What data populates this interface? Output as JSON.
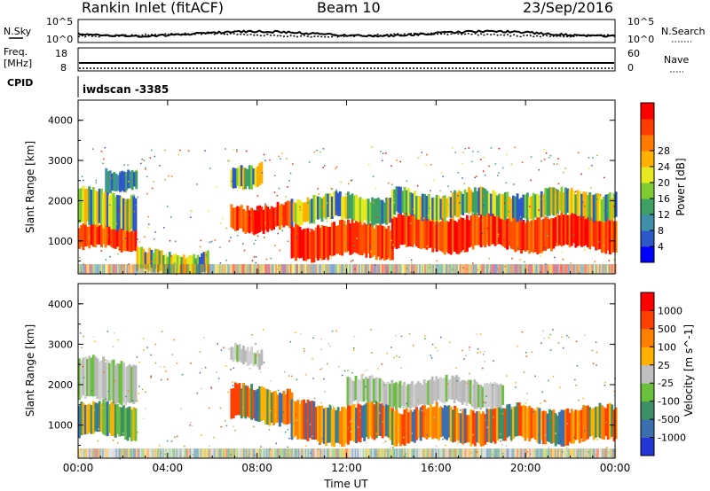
{
  "header": {
    "station": "Rankin Inlet (fitACF)",
    "beam": "Beam 10",
    "date": "23/Sep/2016"
  },
  "noise_panel": {
    "left_label": "N.Sky",
    "right_label": "N.Search",
    "left_ticks": [
      "10^5",
      "10^0"
    ],
    "right_ticks": [
      "10^5",
      "10^0"
    ]
  },
  "freq_panel": {
    "left_label_1": "Freq.",
    "left_label_2": "[MHz]",
    "right_label": "Nave",
    "left_ticks": [
      "18",
      "8"
    ],
    "right_ticks": [
      "60",
      "0"
    ]
  },
  "cpid": {
    "label": "CPID",
    "value": "iwdscan -3385"
  },
  "chart_data": [
    {
      "type": "heatmap",
      "name": "Power",
      "ylabel": "Slant Range [km]",
      "ylim": [
        180,
        4500
      ],
      "y_ticks": [
        "1000",
        "2000",
        "3000",
        "4000"
      ],
      "x_ticks": [
        "00:00",
        "04:00",
        "08:00",
        "12:00",
        "16:00",
        "20:00",
        "00:00"
      ],
      "colorbar": {
        "label": "Power [dB]",
        "tick_labels": [
          "4",
          "8",
          "12",
          "16",
          "20",
          "24",
          "28"
        ],
        "colors": [
          "#0000ff",
          "#2e57c9",
          "#3f8fa8",
          "#3fa066",
          "#7fcc33",
          "#e8e820",
          "#ffb000",
          "#ff7a00",
          "#ff3c00",
          "#ff0000"
        ]
      },
      "bands": [
        {
          "start_hr": 0.0,
          "end_hr": 2.6,
          "low_km": 780,
          "high_km": 1350,
          "level": "high"
        },
        {
          "start_hr": 0.0,
          "end_hr": 2.6,
          "low_km": 1350,
          "high_km": 2200,
          "level": "mid"
        },
        {
          "start_hr": 1.2,
          "end_hr": 2.6,
          "low_km": 2300,
          "high_km": 2800,
          "level": "low"
        },
        {
          "start_hr": 2.6,
          "end_hr": 5.8,
          "low_km": 200,
          "high_km": 700,
          "level": "mid"
        },
        {
          "start_hr": 6.8,
          "end_hr": 9.5,
          "low_km": 1300,
          "high_km": 1900,
          "level": "high"
        },
        {
          "start_hr": 6.8,
          "end_hr": 8.2,
          "low_km": 2400,
          "high_km": 2900,
          "level": "mid"
        },
        {
          "start_hr": 9.5,
          "end_hr": 14.0,
          "low_km": 600,
          "high_km": 1400,
          "level": "high"
        },
        {
          "start_hr": 9.5,
          "end_hr": 14.0,
          "low_km": 1500,
          "high_km": 2100,
          "level": "mid"
        },
        {
          "start_hr": 14.0,
          "end_hr": 24.0,
          "low_km": 800,
          "high_km": 1600,
          "level": "high"
        },
        {
          "start_hr": 14.0,
          "end_hr": 24.0,
          "low_km": 1600,
          "high_km": 2200,
          "level": "mid"
        }
      ]
    },
    {
      "type": "heatmap",
      "name": "Velocity",
      "ylabel": "Slant Range [km]",
      "ylim": [
        180,
        4500
      ],
      "y_ticks": [
        "1000",
        "2000",
        "3000",
        "4000"
      ],
      "x_ticks": [
        "00:00",
        "04:00",
        "08:00",
        "12:00",
        "16:00",
        "20:00",
        "00:00"
      ],
      "xlabel": "Time UT",
      "colorbar": {
        "label": "Velocity [m s^-1]",
        "tick_labels": [
          "1000",
          "500",
          "100",
          "25",
          "-25",
          "-100",
          "-500",
          "-1000"
        ],
        "colors": [
          "#2236d6",
          "#3b6fb0",
          "#3f8f66",
          "#6abf3c",
          "#c0c0c0",
          "#ffb000",
          "#ff8000",
          "#ff4000",
          "#ff0000"
        ]
      },
      "bands": [
        {
          "start_hr": 0.0,
          "end_hr": 2.6,
          "low_km": 700,
          "high_km": 1500,
          "level": "green"
        },
        {
          "start_hr": 0.0,
          "end_hr": 2.6,
          "low_km": 1600,
          "high_km": 2600,
          "level": "grey"
        },
        {
          "start_hr": 6.8,
          "end_hr": 9.5,
          "low_km": 1100,
          "high_km": 1900,
          "level": "orange"
        },
        {
          "start_hr": 6.8,
          "end_hr": 8.2,
          "low_km": 2500,
          "high_km": 2900,
          "level": "grey"
        },
        {
          "start_hr": 9.5,
          "end_hr": 14.0,
          "low_km": 600,
          "high_km": 1500,
          "level": "orange"
        },
        {
          "start_hr": 12.0,
          "end_hr": 19.0,
          "low_km": 1500,
          "high_km": 2100,
          "level": "grey"
        },
        {
          "start_hr": 14.0,
          "end_hr": 24.0,
          "low_km": 600,
          "high_km": 1400,
          "level": "orange"
        }
      ]
    }
  ]
}
